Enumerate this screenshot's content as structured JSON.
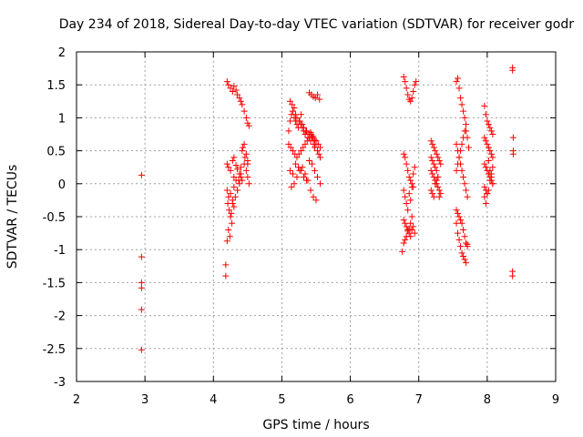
{
  "chart_data": {
    "type": "scatter",
    "title": "Day 234 of 2018, Sidereal Day-to-day VTEC variation (SDTVAR) for receiver godr",
    "xlabel": "GPS time / hours",
    "ylabel": "SDTVAR / TECUs",
    "xlim": [
      2,
      9
    ],
    "ylim": [
      -3,
      2
    ],
    "xticks": [
      "2",
      "3",
      "4",
      "5",
      "6",
      "7",
      "8",
      "9"
    ],
    "yticks": [
      "2",
      "1.5",
      "1",
      "0.5",
      "0",
      "-0.5",
      "-1",
      "-1.5",
      "-2",
      "-2.5",
      "-3"
    ],
    "grid": true,
    "marker": "plus",
    "color": "#ff0000",
    "series": [
      {
        "name": "SDTVAR",
        "x": [
          2.95,
          2.95,
          2.95,
          2.95,
          2.95,
          2.95,
          4.18,
          4.18,
          4.2,
          4.22,
          4.25,
          4.28,
          4.3,
          4.33,
          4.35,
          4.38,
          4.4,
          4.42,
          4.45,
          4.48,
          4.5,
          4.52,
          4.2,
          4.22,
          4.25,
          4.28,
          4.3,
          4.33,
          4.35,
          4.38,
          4.4,
          4.42,
          4.45,
          4.48,
          4.5,
          4.52,
          4.2,
          4.22,
          4.25,
          4.28,
          4.3,
          4.33,
          4.35,
          4.38,
          4.4,
          4.42,
          4.45,
          4.48,
          4.5,
          4.21,
          4.23,
          4.25,
          4.27,
          4.3,
          4.32,
          4.35,
          4.37,
          4.4,
          4.43,
          4.46,
          4.5,
          4.2,
          4.22,
          4.24,
          4.26,
          4.28,
          4.3,
          5.1,
          5.12,
          5.14,
          5.16,
          5.18,
          5.2,
          5.22,
          5.24,
          5.26,
          5.28,
          5.3,
          5.32,
          5.34,
          5.36,
          5.38,
          5.4,
          5.42,
          5.44,
          5.46,
          5.48,
          5.5,
          5.52,
          5.54,
          5.56,
          5.12,
          5.15,
          5.18,
          5.2,
          5.22,
          5.25,
          5.28,
          5.3,
          5.32,
          5.35,
          5.38,
          5.4,
          5.42,
          5.45,
          5.48,
          5.5,
          5.1,
          5.13,
          5.16,
          5.19,
          5.22,
          5.25,
          5.28,
          5.31,
          5.34,
          5.37,
          5.4,
          5.43,
          5.46,
          5.5,
          5.53,
          5.56,
          5.12,
          5.16,
          5.2,
          5.24,
          5.28,
          5.32,
          5.36,
          5.4,
          5.44,
          5.48,
          5.52,
          5.56,
          5.14,
          5.18,
          5.22,
          5.26,
          5.3,
          5.34,
          5.38,
          5.42,
          5.46,
          5.5,
          5.4,
          5.43,
          5.46,
          5.49,
          5.52,
          5.55,
          6.78,
          6.8,
          6.82,
          6.84,
          6.86,
          6.88,
          6.9,
          6.92,
          6.94,
          6.96,
          6.78,
          6.8,
          6.82,
          6.84,
          6.86,
          6.88,
          6.9,
          6.92,
          6.94,
          6.78,
          6.8,
          6.82,
          6.84,
          6.86,
          6.88,
          6.9,
          6.92,
          6.78,
          6.8,
          6.82,
          6.84,
          6.86,
          6.88,
          6.9,
          6.92,
          6.94,
          6.76,
          6.78,
          6.8,
          6.82,
          6.84,
          6.86,
          6.88,
          6.9,
          7.18,
          7.2,
          7.22,
          7.24,
          7.26,
          7.28,
          7.3,
          7.32,
          7.18,
          7.2,
          7.22,
          7.24,
          7.26,
          7.28,
          7.3,
          7.32,
          7.18,
          7.2,
          7.22,
          7.24,
          7.26,
          7.28,
          7.3,
          7.18,
          7.2,
          7.22,
          7.24,
          7.26,
          7.28,
          7.55,
          7.57,
          7.59,
          7.61,
          7.63,
          7.65,
          7.67,
          7.69,
          7.71,
          7.73,
          7.55,
          7.57,
          7.59,
          7.61,
          7.63,
          7.65,
          7.67,
          7.69,
          7.71,
          7.55,
          7.57,
          7.59,
          7.61,
          7.63,
          7.65,
          7.67,
          7.69,
          7.71,
          7.55,
          7.57,
          7.59,
          7.61,
          7.63,
          7.65,
          7.67,
          7.69,
          7.71,
          7.55,
          7.57,
          7.59,
          7.61,
          7.63,
          7.65,
          7.67,
          7.69,
          7.96,
          7.98,
          8.0,
          8.02,
          8.04,
          8.06,
          8.08,
          7.96,
          7.98,
          8.0,
          8.02,
          8.04,
          8.06,
          8.08,
          7.96,
          7.98,
          8.0,
          8.02,
          8.04,
          8.06,
          8.08,
          7.96,
          7.98,
          8.0,
          8.02,
          8.04,
          8.06,
          8.08,
          7.96,
          7.98,
          8.0,
          8.02,
          8.04,
          8.06,
          8.08,
          8.37,
          8.37,
          8.38,
          8.38,
          8.38,
          8.37,
          8.37
        ],
        "y": [
          0.13,
          -1.11,
          -1.5,
          -1.58,
          -1.91,
          -2.52,
          -1.23,
          -1.4,
          1.55,
          1.5,
          1.45,
          1.4,
          1.48,
          1.42,
          1.35,
          1.3,
          1.25,
          1.2,
          1.1,
          1.0,
          0.92,
          0.88,
          0.3,
          0.25,
          0.2,
          0.35,
          0.4,
          0.28,
          0.22,
          0.15,
          0.1,
          0.05,
          0.3,
          0.2,
          0.1,
          0.0,
          -0.1,
          -0.2,
          -0.15,
          -0.25,
          -0.05,
          0.05,
          -0.1,
          0.0,
          0.15,
          0.5,
          0.6,
          0.45,
          0.35,
          -0.3,
          -0.4,
          -0.5,
          -0.6,
          -0.35,
          -0.2,
          -0.1,
          0.05,
          0.25,
          0.55,
          0.4,
          0.3,
          -0.87,
          -0.7,
          -0.8,
          -0.45,
          -0.3,
          0.1,
          0.8,
          0.95,
          1.05,
          1.1,
          1.0,
          0.95,
          0.9,
          0.85,
          0.95,
          0.9,
          0.85,
          0.8,
          0.75,
          0.8,
          0.7,
          0.75,
          0.65,
          0.7,
          0.6,
          0.55,
          0.6,
          0.5,
          0.45,
          0.4,
          1.25,
          1.2,
          1.15,
          1.05,
          1.0,
          0.95,
          1.05,
          0.9,
          0.85,
          0.8,
          0.75,
          0.7,
          0.78,
          0.72,
          0.66,
          0.6,
          0.6,
          0.55,
          0.5,
          0.45,
          0.4,
          0.45,
          0.5,
          0.55,
          0.6,
          0.65,
          0.7,
          0.75,
          0.7,
          0.65,
          0.6,
          0.55,
          0.2,
          0.15,
          0.3,
          0.25,
          0.2,
          0.1,
          0.05,
          0.35,
          0.3,
          0.2,
          0.1,
          0.0,
          -0.05,
          0.0,
          0.1,
          0.2,
          0.25,
          0.15,
          0.05,
          -0.1,
          -0.2,
          -0.25,
          1.38,
          1.35,
          1.32,
          1.3,
          1.35,
          1.28,
          1.62,
          1.55,
          1.45,
          1.35,
          1.28,
          1.25,
          1.3,
          1.4,
          1.5,
          1.55,
          0.45,
          0.4,
          0.3,
          0.2,
          0.1,
          0.05,
          0.0,
          -0.05,
          0.25,
          -0.1,
          -0.2,
          -0.3,
          -0.4,
          -0.15,
          -0.25,
          -0.05,
          0.15,
          -0.55,
          -0.6,
          -0.65,
          -0.7,
          -0.75,
          -0.8,
          -0.7,
          -0.65,
          -0.75,
          -1.03,
          -0.9,
          -0.85,
          -0.8,
          -0.72,
          -0.68,
          -0.6,
          -0.5,
          0.65,
          0.6,
          0.55,
          0.5,
          0.45,
          0.4,
          0.35,
          0.3,
          0.2,
          0.15,
          0.1,
          0.05,
          0.0,
          -0.05,
          -0.1,
          -0.15,
          0.4,
          0.35,
          0.3,
          0.25,
          0.2,
          0.1,
          -0.2,
          -0.1,
          -0.15,
          -0.2,
          0.0,
          0.05,
          0.1,
          1.55,
          1.6,
          1.45,
          1.3,
          1.2,
          1.1,
          1.0,
          0.8,
          0.7,
          0.55,
          0.6,
          0.5,
          0.4,
          0.3,
          0.2,
          0.1,
          0.0,
          -0.1,
          -0.2,
          -0.4,
          -0.45,
          -0.5,
          -0.55,
          -0.6,
          -0.7,
          -0.8,
          -0.9,
          -0.95,
          -0.6,
          -0.75,
          -0.85,
          -0.95,
          -1.05,
          -1.1,
          -1.15,
          -1.2,
          -0.92,
          0.2,
          0.3,
          0.4,
          0.5,
          0.6,
          0.7,
          0.8,
          0.9,
          1.18,
          1.05,
          0.95,
          0.9,
          0.85,
          0.8,
          0.75,
          0.7,
          0.65,
          0.6,
          0.55,
          0.5,
          0.45,
          0.4,
          0.3,
          0.25,
          0.2,
          0.15,
          0.1,
          0.05,
          0.0,
          -0.05,
          -0.1,
          -0.15,
          0.35,
          0.2,
          0.1,
          0.0,
          -0.2,
          -0.3,
          -0.15,
          -0.1,
          0.05,
          0.15,
          0.25,
          1.76,
          1.72,
          0.7,
          0.5,
          0.45,
          -1.33,
          -1.4
        ]
      }
    ]
  }
}
